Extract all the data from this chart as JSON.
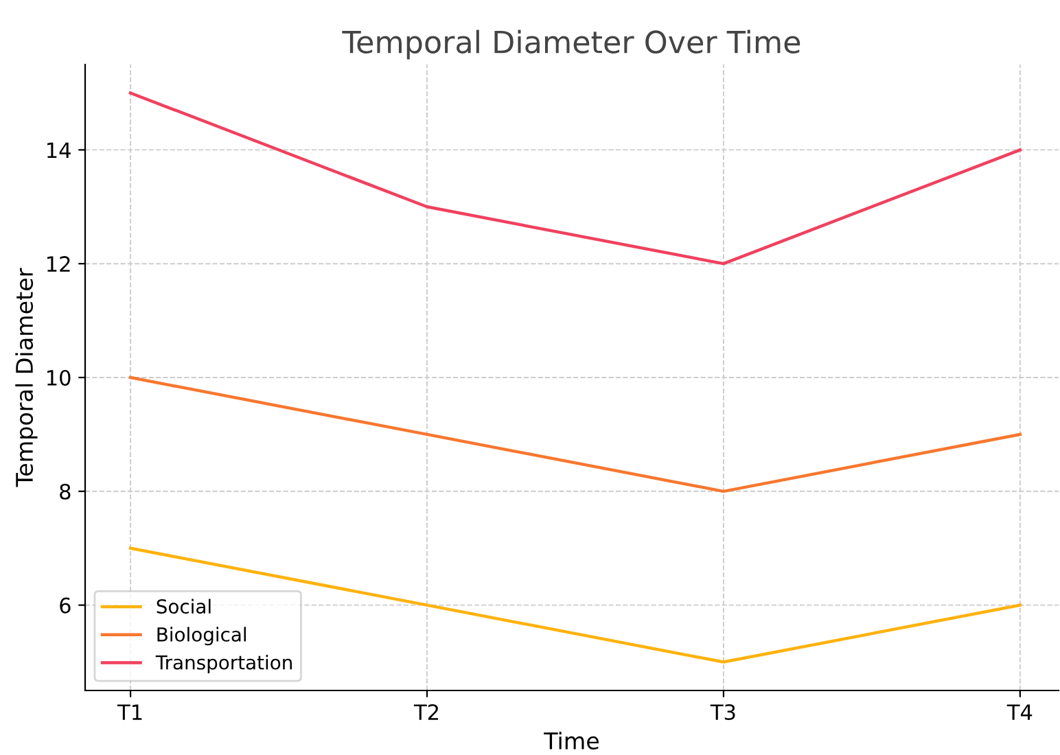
{
  "chart_data": {
    "type": "line",
    "title": "Temporal Diameter Over Time",
    "xlabel": "Time",
    "ylabel": "Temporal Diameter",
    "categories": [
      "T1",
      "T2",
      "T3",
      "T4"
    ],
    "series": [
      {
        "name": "Social",
        "color": "#ffb20f",
        "values": [
          7,
          6,
          5,
          6
        ]
      },
      {
        "name": "Biological",
        "color": "#f7772f",
        "values": [
          10,
          9,
          8,
          9
        ]
      },
      {
        "name": "Transportation",
        "color": "#f0415f",
        "values": [
          15,
          13,
          12,
          14
        ]
      }
    ],
    "ylim": [
      4.5,
      15.5
    ],
    "yticks": [
      6,
      8,
      10,
      12,
      14
    ],
    "grid": true,
    "legend": "bottom left",
    "marker": "none",
    "line_style": "solid"
  }
}
